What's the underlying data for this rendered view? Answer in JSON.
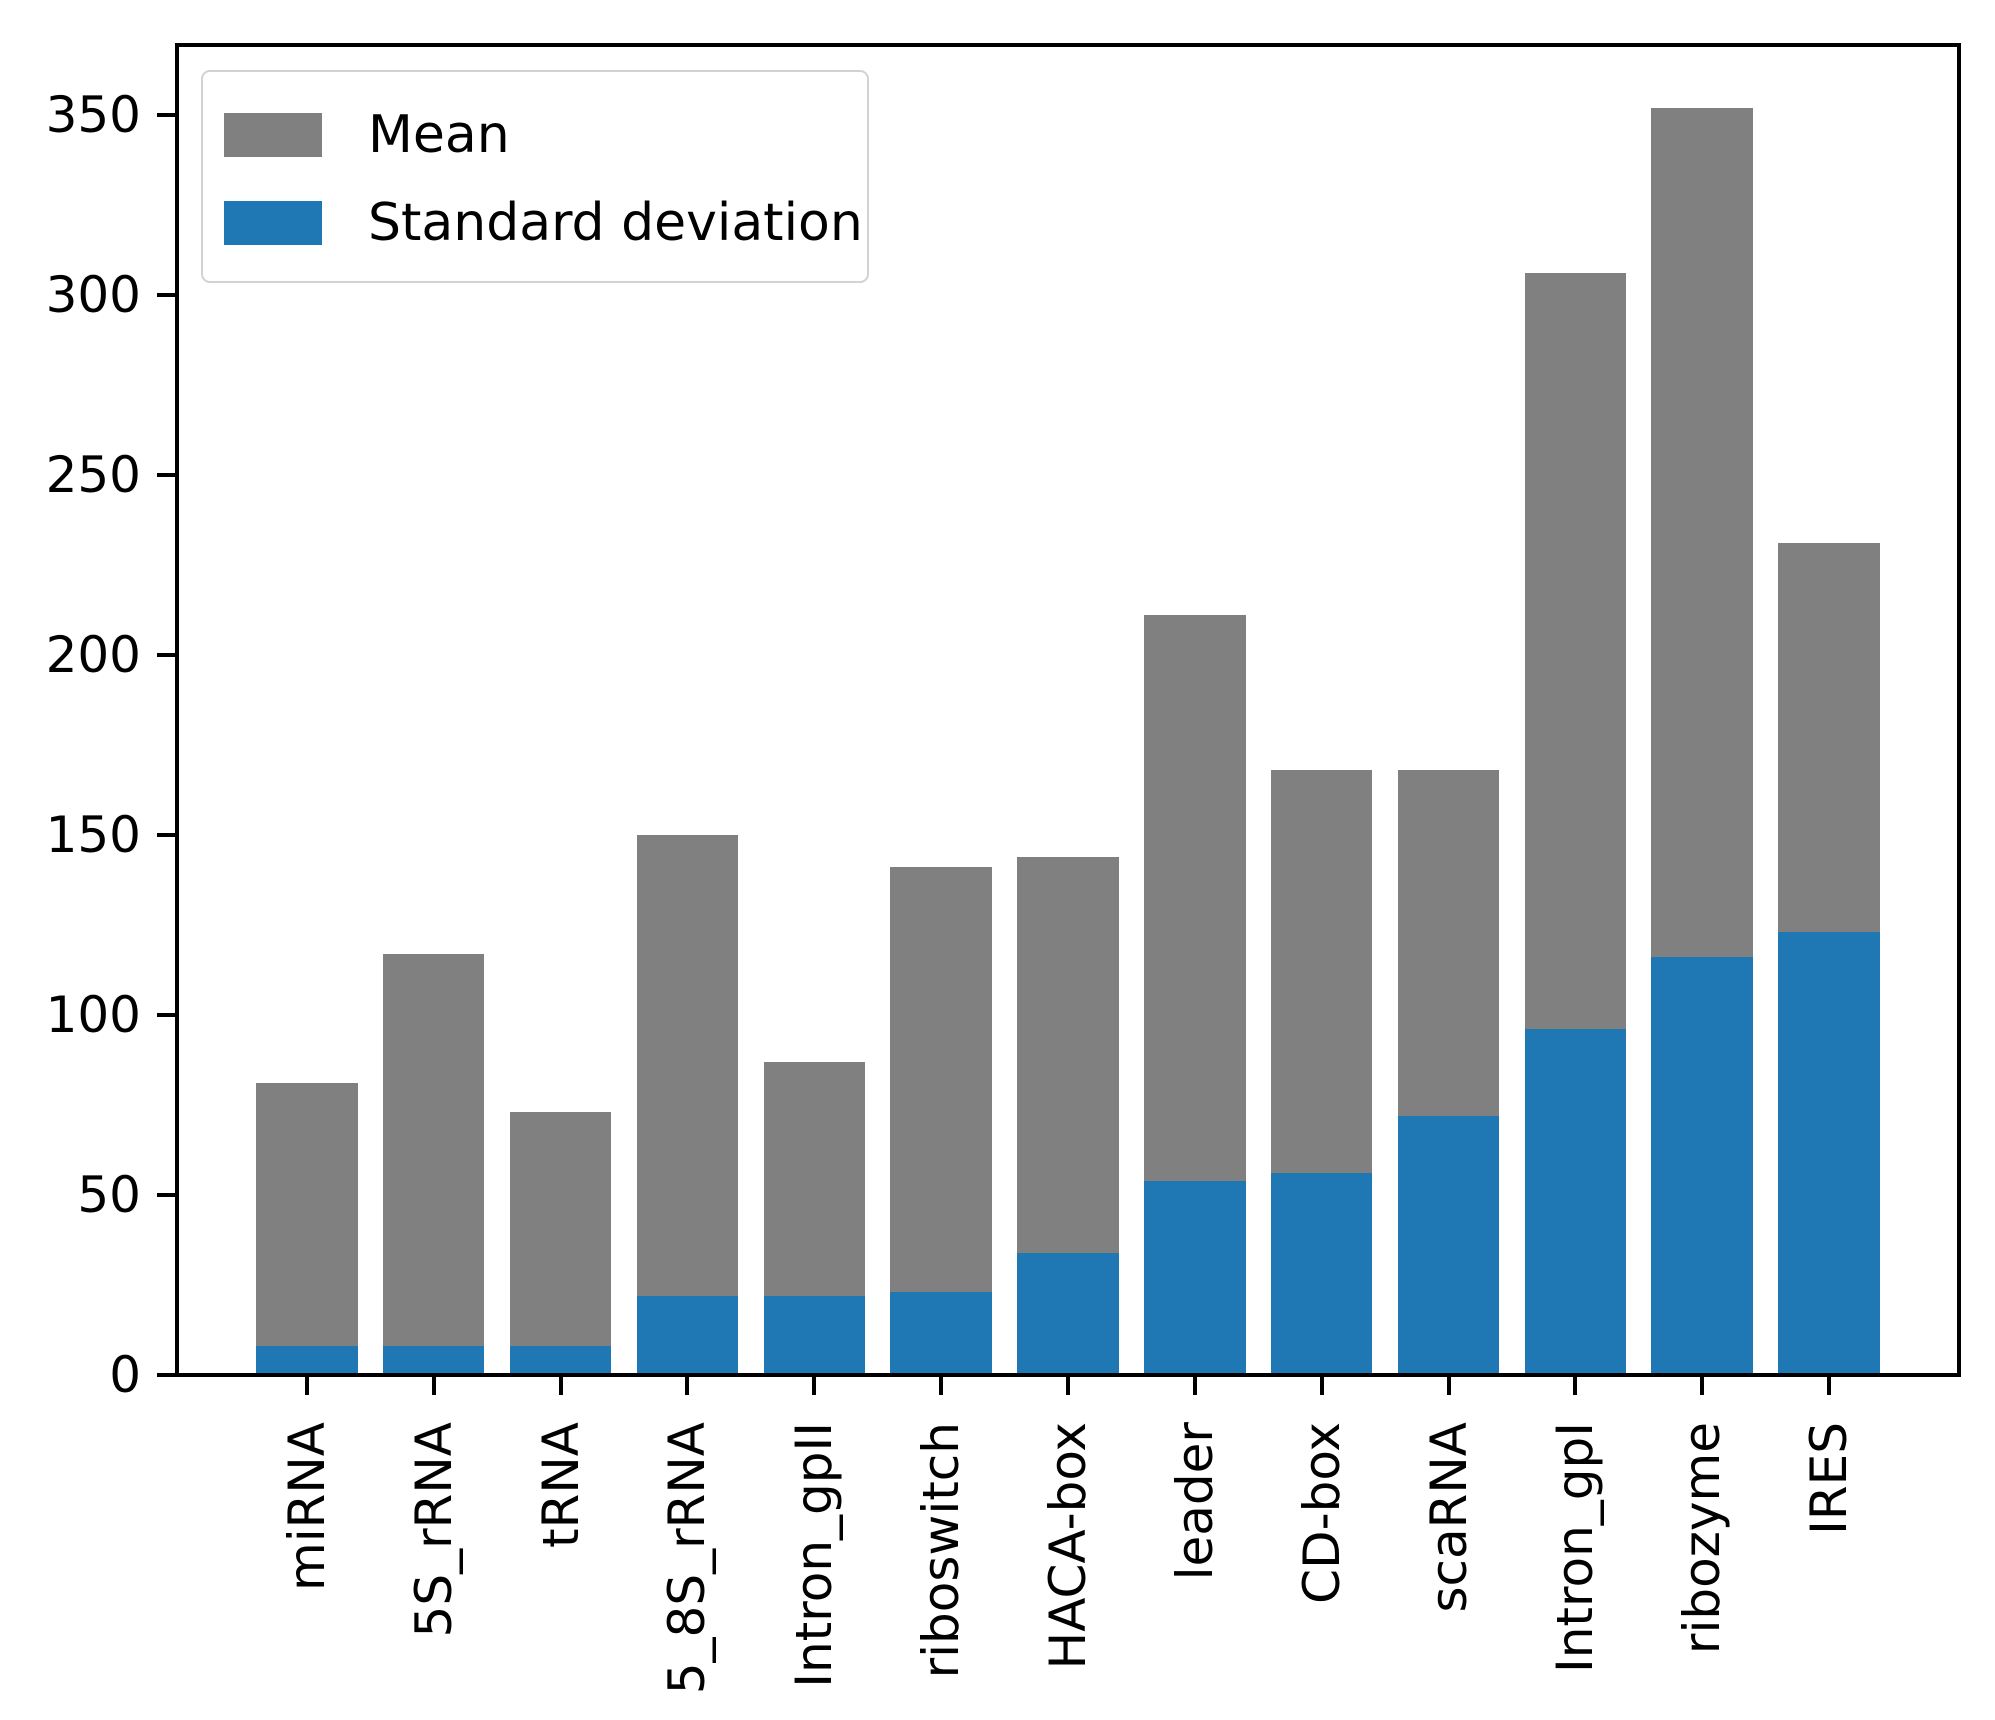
{
  "chart_data": {
    "type": "bar",
    "title": "",
    "xlabel": "",
    "ylabel": "",
    "categories": [
      "miRNA",
      "5S_rRNA",
      "tRNA",
      "5_8S_rRNA",
      "Intron_gpII",
      "riboswitch",
      "HACA-box",
      "leader",
      "CD-box",
      "scaRNA",
      "Intron_gpI",
      "ribozyme",
      "IRES"
    ],
    "series": [
      {
        "name": "Mean",
        "color": "#808080",
        "values": [
          81,
          117,
          73,
          150,
          87,
          141,
          144,
          211,
          168,
          168,
          306,
          352,
          231
        ]
      },
      {
        "name": "Standard deviation",
        "color": "#1f77b4",
        "values": [
          8,
          8,
          8,
          22,
          22,
          23,
          34,
          54,
          56,
          72,
          96,
          116,
          123
        ]
      }
    ],
    "ylim": [
      0,
      370
    ],
    "yticks": [
      0,
      50,
      100,
      150,
      200,
      250,
      300,
      350
    ],
    "xtick_rotation": "vertical",
    "bar_width_fraction": 0.8,
    "grid": false,
    "legend_position": "upper left",
    "note": "Blue standard-deviation bars are drawn in front of gray mean bars; both rise from zero"
  },
  "legend": {
    "entries": [
      {
        "label": "Mean",
        "color": "#808080"
      },
      {
        "label": "Standard deviation",
        "color": "#1f77b4"
      }
    ]
  },
  "axes": {
    "spine_color": "#000000",
    "background": "#ffffff"
  }
}
